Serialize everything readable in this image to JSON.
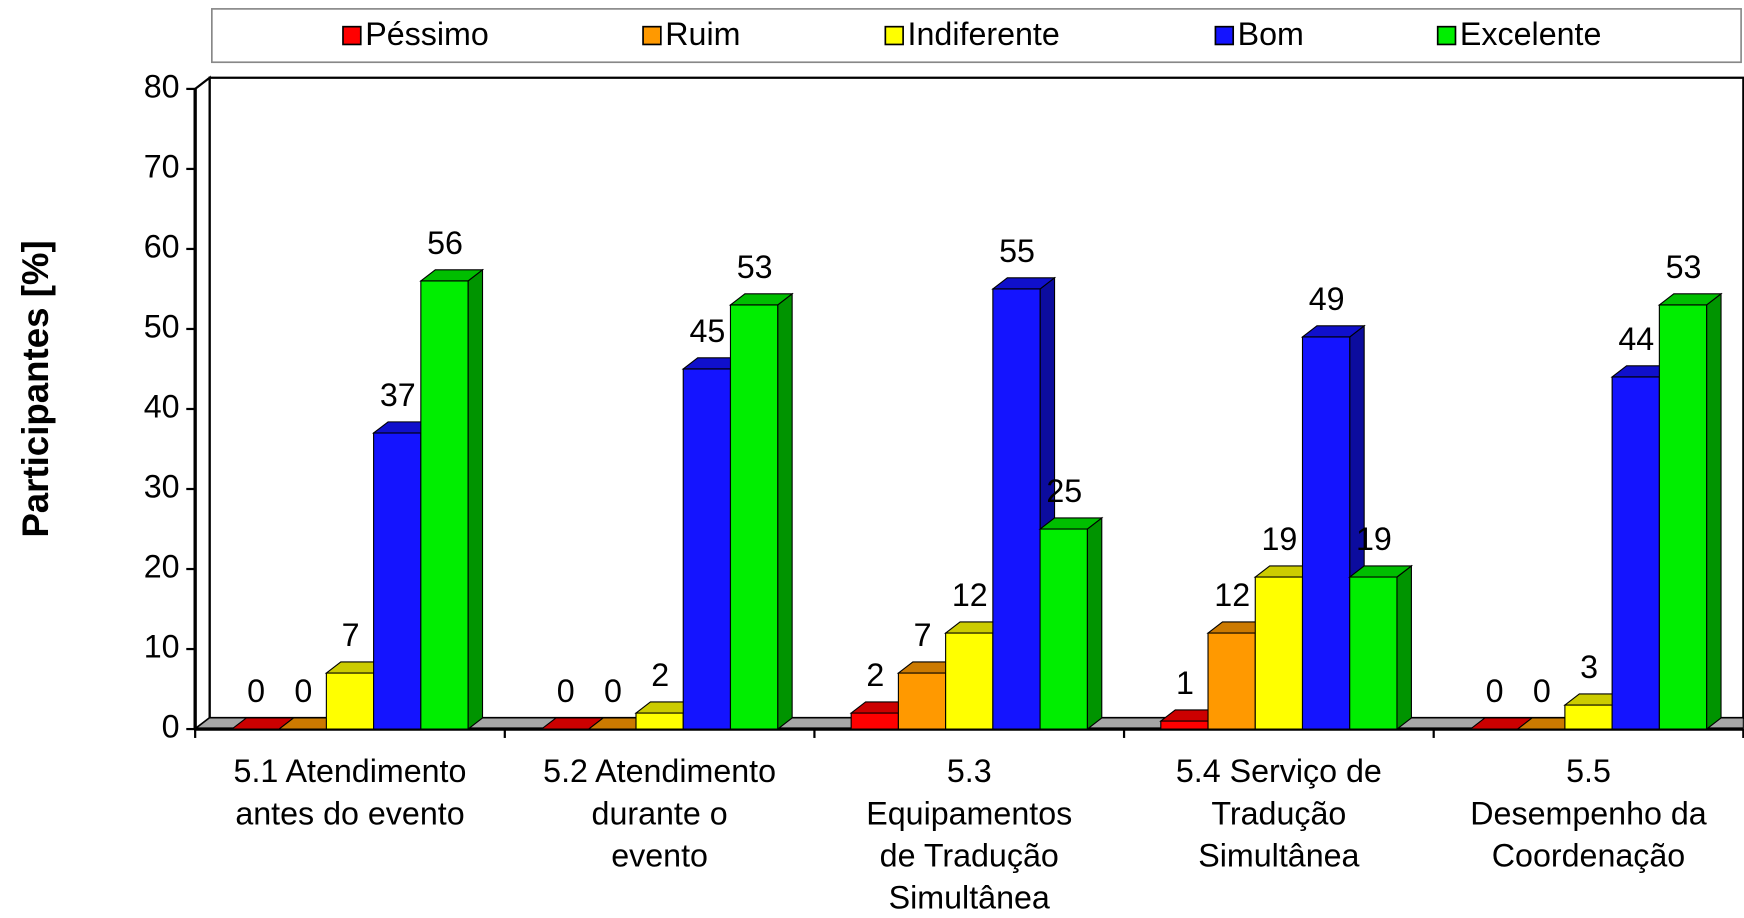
{
  "chart_data": {
    "type": "bar3d",
    "y_label": "Participantes [%]",
    "categories": [
      [
        "5.1 Atendimento",
        "antes do evento"
      ],
      [
        "5.2 Atendimento",
        "durante o",
        "evento"
      ],
      [
        "5.3",
        "Equipamentos",
        "de Tradução",
        "Simultânea"
      ],
      [
        "5.4 Serviço de",
        "Tradução",
        "Simultânea"
      ],
      [
        "5.5",
        "Desempenho da",
        "Coordenação"
      ]
    ],
    "series": [
      {
        "name": "Péssimo",
        "color": "#ff0000",
        "values": [
          0,
          0,
          2,
          1,
          0
        ]
      },
      {
        "name": "Ruim",
        "color": "#ff9900",
        "values": [
          0,
          0,
          7,
          12,
          0
        ]
      },
      {
        "name": "Indiferente",
        "color": "#ffff00",
        "values": [
          7,
          2,
          12,
          19,
          3
        ]
      },
      {
        "name": "Bom",
        "color": "#1414ff",
        "values": [
          37,
          45,
          55,
          49,
          44
        ]
      },
      {
        "name": "Excelente",
        "color": "#00ee00",
        "values": [
          56,
          53,
          25,
          19,
          53
        ]
      }
    ],
    "ylim": [
      0,
      80
    ],
    "yticks": [
      0,
      10,
      20,
      30,
      40,
      50,
      60,
      70,
      80
    ],
    "legend": "top"
  }
}
